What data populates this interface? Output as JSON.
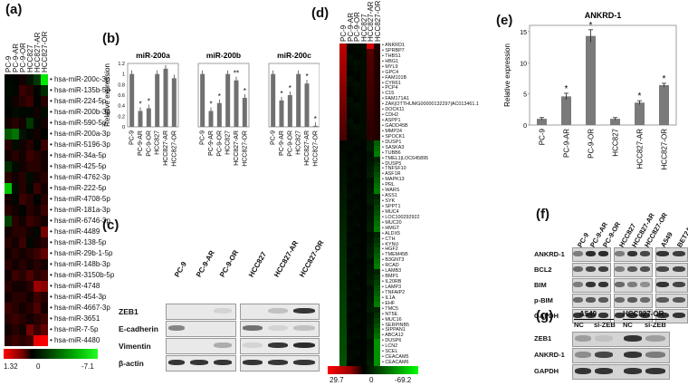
{
  "panels": {
    "a": "(a)",
    "b": "(b)",
    "c": "(c)",
    "d": "(d)",
    "e": "(e)",
    "f": "(f)",
    "g": "(g)"
  },
  "heatmap_a": {
    "columns": [
      "PC-9",
      "PC-9-AR",
      "PC-9-OR",
      "HCC827",
      "HCC827-AR",
      "HCC827-OR"
    ],
    "rows": [
      "hsa-miR-200c-3p",
      "hsa-miR-135b-5p",
      "hsa-miR-224-5p",
      "hsa-miR-200b-3p",
      "hsa-miR-590-5p",
      "hsa-miR-200a-3p",
      "hsa-miR-5196-3p",
      "hsa-miR-34a-5p",
      "hsa-miR-425-5p",
      "hsa-miR-4762-3p",
      "hsa-miR-222-5p",
      "hsa-miR-4708-5p",
      "hsa-miR-181a-3p",
      "hsa-miR-6746-3p",
      "hsa-miR-4489",
      "hsa-miR-138-5p",
      "hsa-miR-29b-1-5p",
      "hsa-miR-148b-3p",
      "hsa-miR-3150b-5p",
      "hsa-miR-4748",
      "hsa-miR-454-3p",
      "hsa-miR-4667-3p",
      "hsa-miR-3651",
      "hsa-miR-7-5p",
      "hsa-miR-4480"
    ],
    "values": [
      [
        -0.2,
        -0.1,
        0.1,
        -0.5,
        -1.5,
        -6.5
      ],
      [
        -0.3,
        -0.2,
        0.3,
        0.2,
        -0.2,
        -1.2
      ],
      [
        -0.2,
        0.1,
        0.2,
        0.3,
        -0.1,
        0.2
      ],
      [
        -0.1,
        -0.3,
        -0.2,
        -0.2,
        0.1,
        -0.3
      ],
      [
        0.1,
        0.2,
        0.1,
        -1.5,
        -0.2,
        0.1
      ],
      [
        -2.5,
        -3.2,
        -0.5,
        -0.2,
        0.1,
        -0.1
      ],
      [
        0.2,
        -0.3,
        0.1,
        0.2,
        -0.1,
        0.3
      ],
      [
        0.1,
        0.2,
        0.1,
        0.3,
        0.2,
        0.1
      ],
      [
        -1.2,
        -0.3,
        0.1,
        0.2,
        0.2,
        0.1
      ],
      [
        0.2,
        0.1,
        0.2,
        -0.3,
        0.1,
        0.2
      ],
      [
        -5.5,
        -0.4,
        0.2,
        -0.2,
        0.3,
        0.1
      ],
      [
        0.1,
        -0.2,
        0.3,
        0.2,
        -0.1,
        0.2
      ],
      [
        0.2,
        0.1,
        -0.1,
        0.2,
        0.1,
        0.3
      ],
      [
        -1.8,
        0.2,
        0.1,
        0.3,
        0.2,
        0.1
      ],
      [
        0.1,
        0.2,
        0.2,
        0.1,
        -0.2,
        0.6
      ],
      [
        0.2,
        0.1,
        0.3,
        -0.2,
        0.1,
        0.2
      ],
      [
        0.1,
        0.2,
        0.1,
        0.2,
        0.3,
        0.5
      ],
      [
        0.2,
        0.1,
        0.2,
        0.1,
        0.2,
        0.1
      ],
      [
        0.1,
        0.3,
        0.2,
        0.4,
        0.2,
        0.3
      ],
      [
        0.2,
        0.1,
        0.1,
        0.2,
        0.8,
        0.7
      ],
      [
        0.1,
        0.2,
        0.2,
        0.1,
        0.3,
        0.2
      ],
      [
        0.3,
        0.2,
        0.1,
        0.2,
        0.4,
        0.1
      ],
      [
        0.2,
        0.3,
        0.2,
        0.1,
        0.2,
        0.3
      ],
      [
        0.1,
        0.2,
        0.1,
        0.6,
        0.3,
        0.5
      ],
      [
        0.2,
        0.3,
        0.2,
        0.3,
        1.2,
        1.3
      ]
    ],
    "scale_min": "1.32",
    "scale_mid": "0",
    "scale_max": "-7.1"
  },
  "bar_b": {
    "ylabel": "Relative expression",
    "categories": [
      "PC-9",
      "PC-9-AR",
      "PC-9-OR",
      "HCC827",
      "HCC827-AR",
      "HCC827-OR"
    ],
    "ylim": [
      0,
      1.2
    ],
    "ticks": [
      "0",
      "0.2",
      "0.4",
      "0.6",
      "0.8",
      "1",
      "1.2"
    ],
    "charts": [
      {
        "title": "miR-200a",
        "values": [
          1.0,
          0.3,
          0.35,
          1.0,
          1.1,
          0.92
        ],
        "stars": [
          "",
          "*",
          "*",
          "",
          "",
          ""
        ]
      },
      {
        "title": "miR-200b",
        "values": [
          1.0,
          0.3,
          0.45,
          1.0,
          0.88,
          0.55
        ],
        "stars": [
          "",
          "*",
          "*",
          "",
          "**",
          "*"
        ]
      },
      {
        "title": "miR-200c",
        "values": [
          1.0,
          0.5,
          0.6,
          1.0,
          0.82,
          0.02
        ],
        "stars": [
          "",
          "*",
          "*",
          "",
          "*",
          "*"
        ]
      }
    ]
  },
  "blot_c": {
    "columns": [
      "PC-9",
      "PC-9-AR",
      "PC-9-OR",
      "HCC827",
      "HCC827-AR",
      "HCC827-OR"
    ],
    "rows": [
      "ZEB1",
      "E-cadherin",
      "Vimentin",
      "β-actin"
    ],
    "intensity": [
      [
        0,
        0,
        0.1,
        0,
        0.2,
        0.9
      ],
      [
        0.5,
        0,
        0,
        0.6,
        0.1,
        0.2
      ],
      [
        0,
        0,
        0.3,
        0.1,
        0.9,
        0.95
      ],
      [
        0.9,
        0.9,
        0.9,
        0.9,
        0.9,
        0.9
      ]
    ]
  },
  "heatmap_d": {
    "columns": [
      "PC-9",
      "PC-9-AR",
      "PC-9-OR",
      "HCC827",
      "HCC827-AR",
      "HCC827-OR"
    ],
    "genes": [
      "ANKRD1",
      "SPRBP7",
      "THBS1",
      "HBG1",
      "MYL9",
      "GPC4",
      "FAM101B",
      "CYR61",
      "PCP4",
      "C15",
      "FAM171A1",
      "ZAK|OTTHUMG00000132297|AC013461.1",
      "DOCK11",
      "CDH2",
      "ASPP1",
      "GADD45B",
      "MMP24",
      "SPOCK1",
      "DUSP1",
      "SASKA3",
      "TUBB6",
      "TMEL1|LOC645895",
      "DUSP5",
      "TNFSF10",
      "ASF1R",
      "MAPK13",
      "PRL",
      "WARS",
      "ASS1",
      "SYK",
      "SPPT1",
      "MUC4",
      "LOC100292922",
      "MUC20",
      "HMGT",
      "ALDX5",
      "CTH",
      "KYNU",
      "HGF2",
      "TMEM45B",
      "B3GNT3",
      "RCAD",
      "LAMB3",
      "BMP1",
      "IL20RB",
      "LAMP3",
      "TNFAIP2",
      "IL1A",
      "EHF",
      "TMC5",
      "NT5E",
      "MUC16",
      "SERPINB5",
      "SIPPAN1",
      "ABCA12",
      "DUSP6",
      "LCN2",
      "SCEL",
      "CEACAM5",
      "CEACAM6"
    ],
    "scale_min": "29.7",
    "scale_mid": "0",
    "scale_max": "-69.2"
  },
  "bar_e": {
    "title": "ANKRD-1",
    "ylabel": "Relative expression",
    "categories": [
      "PC-9",
      "PC-9-AR",
      "PC-9-OR",
      "HCC827",
      "HCC827-AR",
      "HCC827-OR"
    ],
    "values": [
      1.0,
      4.6,
      14.3,
      1.0,
      3.6,
      6.4
    ],
    "errors": [
      0.2,
      0.5,
      1.0,
      0.2,
      0.3,
      0.3
    ],
    "stars": [
      "",
      "*",
      "*",
      "",
      "*",
      "*"
    ],
    "ylim": [
      0,
      16
    ],
    "ticks": [
      "0",
      "5",
      "10",
      "15"
    ]
  },
  "blot_f": {
    "columns": [
      "PC-9",
      "PC-9-AR",
      "PC-9-OR",
      "HCC827",
      "HCC827-AR",
      "HCC827-OR",
      "A549",
      "BET2A"
    ],
    "rows": [
      "ANKRD-1",
      "BCL2",
      "BIM",
      "p-BIM",
      "GAPDH"
    ]
  },
  "blot_g": {
    "group1": "A549",
    "group2": "HCC827-OR",
    "columns": [
      "NC",
      "si-ZEB",
      "NC",
      "si-ZEB"
    ],
    "rows": [
      "ZEB1",
      "ANKRD-1",
      "GAPDH"
    ]
  }
}
